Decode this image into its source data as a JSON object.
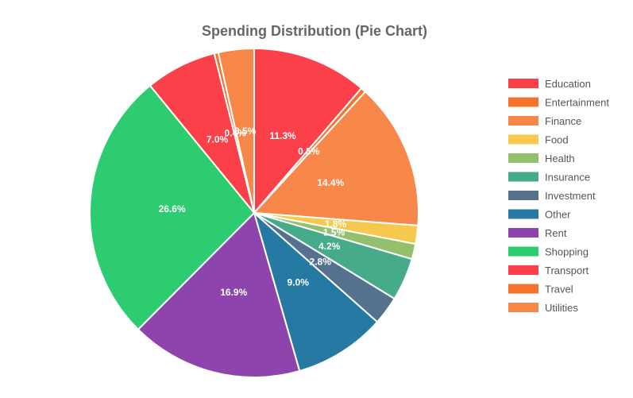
{
  "chart_data": {
    "type": "pie",
    "title": "Spending Distribution (Pie Chart)",
    "slices": [
      {
        "label": "Education",
        "value": 11.3,
        "display": "11.3%",
        "color": "#fb4049"
      },
      {
        "label": "Entertainment",
        "value": 0.5,
        "display": "0.5%",
        "color": "#f6722c"
      },
      {
        "label": "Finance",
        "value": 14.4,
        "display": "14.4%",
        "color": "#f8874a"
      },
      {
        "label": "Food",
        "value": 1.8,
        "display": "1.8%",
        "color": "#f6c84e"
      },
      {
        "label": "Health",
        "value": 1.5,
        "display": "1.5%",
        "color": "#92c06d"
      },
      {
        "label": "Insurance",
        "value": 4.2,
        "display": "4.2%",
        "color": "#45ab8a"
      },
      {
        "label": "Investment",
        "value": 2.8,
        "display": "2.8%",
        "color": "#56718e"
      },
      {
        "label": "Other",
        "value": 9.0,
        "display": "9.0%",
        "color": "#2679a2"
      },
      {
        "label": "Rent",
        "value": 16.9,
        "display": "16.9%",
        "color": "#8e44ad"
      },
      {
        "label": "Shopping",
        "value": 26.6,
        "display": "26.6%",
        "color": "#2ecc71"
      },
      {
        "label": "Transport",
        "value": 7.0,
        "display": "7.0%",
        "color": "#fb4049"
      },
      {
        "label": "Travel",
        "value": 0.4,
        "display": "0.4%",
        "color": "#f6722c"
      },
      {
        "label": "Utilities",
        "value": 3.5,
        "display": "3.5%",
        "color": "#f8874a"
      }
    ],
    "legend_position": "right"
  }
}
